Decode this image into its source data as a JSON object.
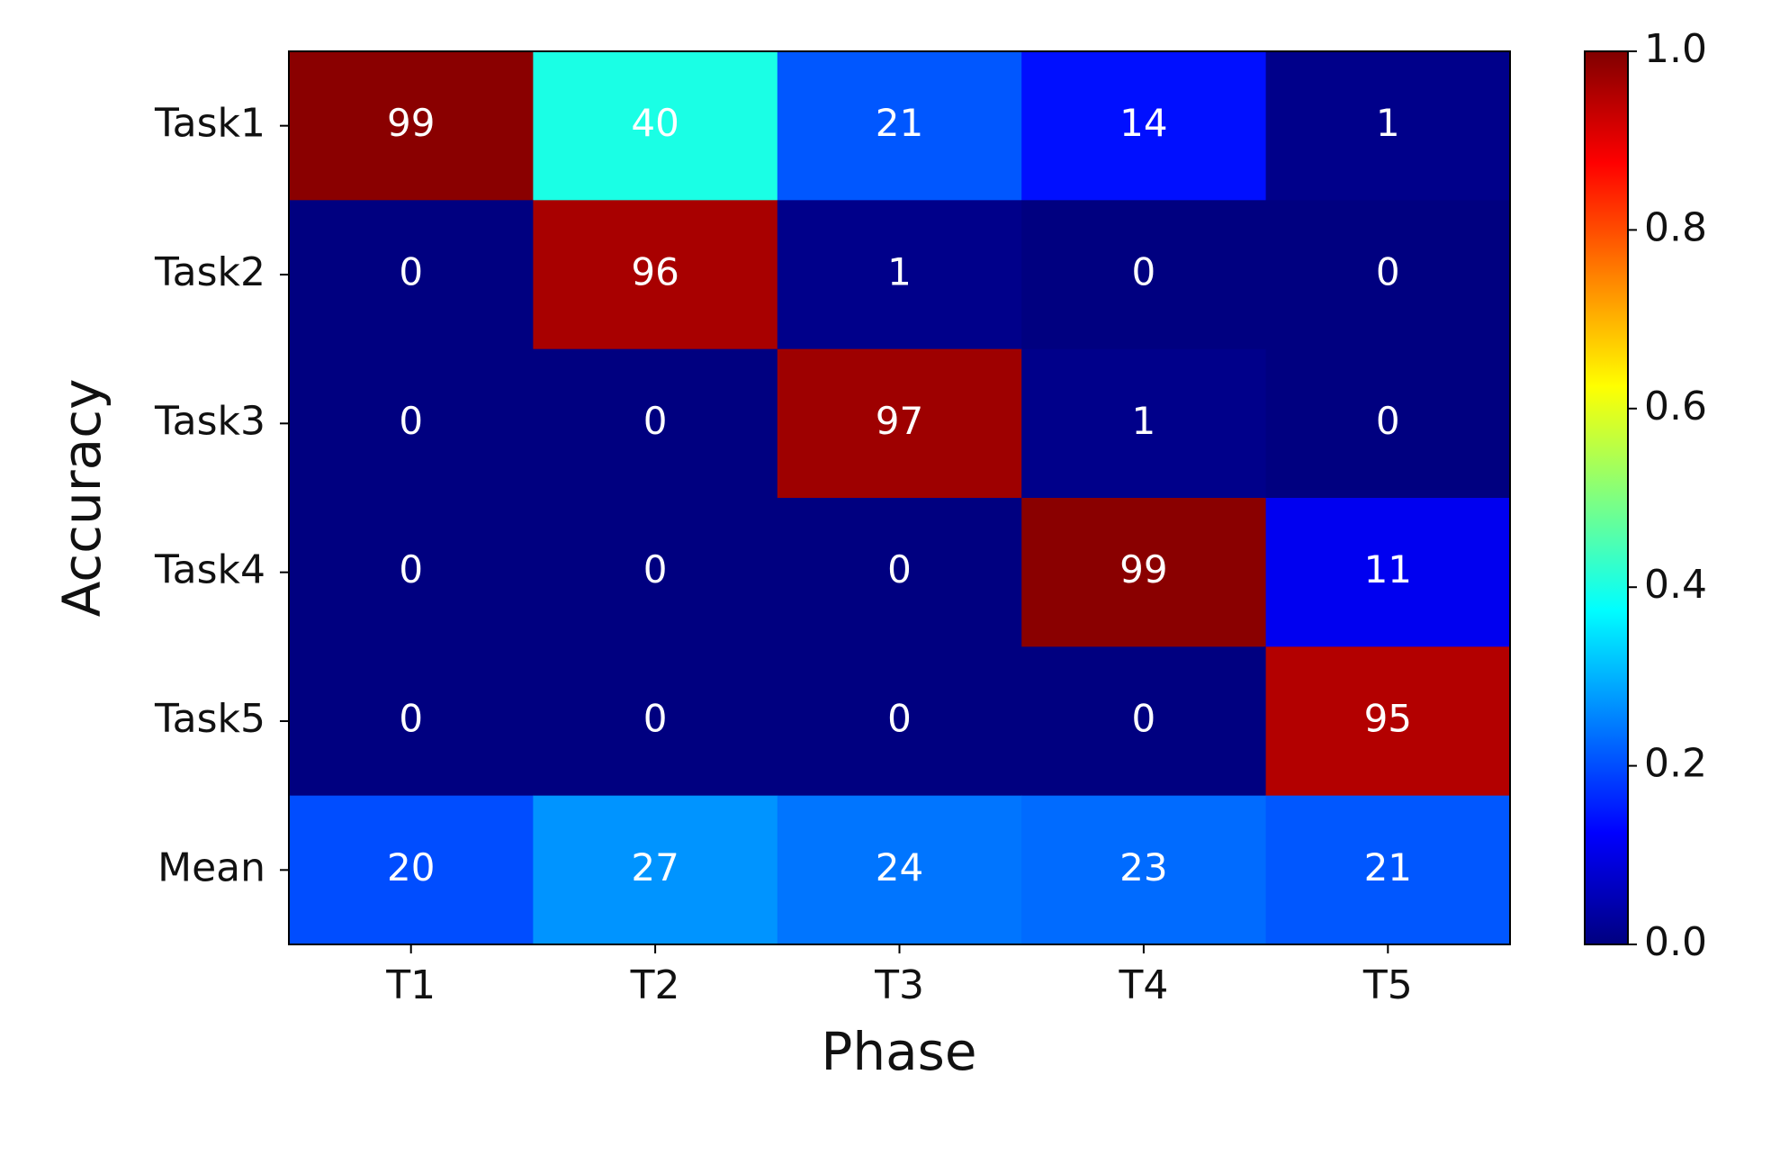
{
  "chart_data": {
    "type": "heatmap",
    "xlabel": "Phase",
    "ylabel": "Accuracy",
    "x_categories": [
      "T1",
      "T2",
      "T3",
      "T4",
      "T5"
    ],
    "y_categories": [
      "Task1",
      "Task2",
      "Task3",
      "Task4",
      "Task5",
      "Mean"
    ],
    "values": [
      [
        0.99,
        0.4,
        0.21,
        0.14,
        0.01
      ],
      [
        0,
        0.96,
        0.01,
        0,
        0
      ],
      [
        0,
        0,
        0.97,
        0.01,
        0
      ],
      [
        0,
        0,
        0,
        0.99,
        0.11
      ],
      [
        0,
        0,
        0,
        0,
        0.95
      ],
      [
        0.2,
        0.27,
        0.24,
        0.23,
        0.21
      ]
    ],
    "value_labels": [
      [
        "99",
        "40",
        "21",
        "14",
        "1"
      ],
      [
        "0",
        "96",
        "1",
        "0",
        "0"
      ],
      [
        "0",
        "0",
        "97",
        "1",
        "0"
      ],
      [
        "0",
        "0",
        "0",
        "99",
        "11"
      ],
      [
        "0",
        "0",
        "0",
        "0",
        "95"
      ],
      [
        "20",
        "27",
        "24",
        "23",
        "21"
      ]
    ],
    "colormap": "jet",
    "clim": [
      0,
      1
    ],
    "cticks": [
      {
        "value": 0,
        "label": "0.0"
      },
      {
        "value": 0.2,
        "label": "0.2"
      },
      {
        "value": 0.4,
        "label": "0.4"
      },
      {
        "value": 0.6,
        "label": "0.6"
      },
      {
        "value": 0.8,
        "label": "0.8"
      },
      {
        "value": 1,
        "label": "1.0"
      }
    ]
  }
}
